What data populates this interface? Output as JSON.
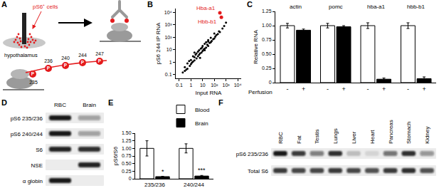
{
  "diagram": {
    "panel_label": "A",
    "cells_label": "pS6⁺ cells",
    "region_label": "hypothalamus",
    "sites_top": [
      "236",
      "240",
      "244",
      "247"
    ],
    "sites_bottom": [
      "235"
    ],
    "phospho_label": "P"
  },
  "chart_data": [
    {
      "panel_label": "B",
      "type": "scatter",
      "log": true,
      "xlabel": "Input RNA",
      "ylabel": "pS6 244 IP RNA",
      "xlim": [
        0.05,
        20000
      ],
      "ylim": [
        0.05,
        20000
      ],
      "xticks": [
        0.1,
        1,
        10,
        {
          "value": 100,
          "label": "10²"
        },
        {
          "value": 1000,
          "label": "10³"
        },
        {
          "value": 10000,
          "label": "10⁴"
        }
      ],
      "yticks": [
        0.1,
        1,
        10,
        {
          "value": 100,
          "label": "10²"
        },
        {
          "value": 1000,
          "label": "10³"
        },
        {
          "value": 10000,
          "label": "10⁴"
        }
      ],
      "series": [
        {
          "color": "#000000",
          "x": [
            0.2,
            0.3,
            0.3,
            0.5,
            0.5,
            0.7,
            0.8,
            1,
            1,
            1.2,
            1.5,
            1.5,
            2,
            2,
            2.5,
            3,
            3,
            4,
            4,
            5,
            5,
            6,
            7,
            8,
            9,
            10,
            10,
            12,
            15,
            15,
            20,
            20,
            25,
            30,
            30,
            40,
            50,
            50,
            60,
            80,
            100,
            100,
            120,
            150,
            200,
            250,
            300,
            500,
            700,
            1000,
            2,
            0.4,
            6,
            30,
            15
          ],
          "y": [
            0.15,
            0.4,
            0.2,
            0.8,
            0.3,
            1.2,
            0.5,
            1.5,
            0.7,
            0.9,
            3,
            1.1,
            2.5,
            1.4,
            4,
            2,
            5,
            3,
            7,
            4,
            9,
            5,
            12,
            6,
            15,
            8,
            20,
            10,
            12,
            30,
            15,
            40,
            25,
            20,
            60,
            35,
            40,
            90,
            50,
            70,
            80,
            200,
            110,
            150,
            180,
            300,
            260,
            500,
            800,
            1500,
            6,
            0.25,
            2.2,
            45,
            9
          ]
        },
        {
          "color": "#e41a1c",
          "x": [
            300,
            400
          ],
          "y": [
            9000,
            4000
          ],
          "labels": [
            "Hba-a1",
            "Hbb-b1"
          ]
        }
      ]
    },
    {
      "panel_label": "C",
      "type": "bar",
      "ylabel": "Relative RNA",
      "xlabel": "Perfusion",
      "categories": [
        "actin",
        "pomc",
        "hba-a1",
        "hbb-b1"
      ],
      "ylim": [
        0,
        1.25
      ],
      "yticks": [
        0,
        0.25,
        {
          "value": 0.5,
          "label": "0.50"
        },
        0.75,
        {
          "value": 1,
          "label": "1.00"
        },
        1.25
      ],
      "series": [
        {
          "name": "-",
          "color": "#ffffff",
          "values": [
            1,
            1,
            1,
            1
          ],
          "errors": [
            0.04,
            0.04,
            0.05,
            0.05
          ]
        },
        {
          "name": "+",
          "color": "#000000",
          "values": [
            0.92,
            0.98,
            0.06,
            0.07
          ],
          "errors": [
            0.02,
            0.02,
            0.02,
            0.03
          ]
        }
      ]
    },
    {
      "panel_label": "E",
      "type": "bar",
      "ylabel": "pS6/S6",
      "legend": "top right",
      "categories": [
        "235/236",
        "240/244"
      ],
      "ylim": [
        0,
        1.5
      ],
      "yticks": [
        0,
        0.25,
        {
          "value": 0.5,
          "label": "0.50"
        },
        0.75,
        {
          "value": 1,
          "label": "1.00"
        },
        1.25,
        {
          "value": 1.5,
          "label": "1.50"
        }
      ],
      "series": [
        {
          "name": "Blood",
          "color": "#ffffff",
          "values": [
            1,
            1
          ],
          "errors": [
            0.25,
            0.15
          ]
        },
        {
          "name": "Brain",
          "color": "#000000",
          "values": [
            0.07,
            0.09
          ],
          "errors": [
            0.01,
            0.02
          ]
        }
      ],
      "annotations": [
        {
          "category": "235/236",
          "series": "Brain",
          "text": "*"
        },
        {
          "category": "240/244",
          "series": "Brain",
          "text": "***"
        }
      ]
    }
  ],
  "blots": [
    {
      "panel_label": "D",
      "columns": [
        "RBC",
        "Brain"
      ],
      "rows": [
        {
          "label": "pS6 235/236",
          "intensity": [
            0.95,
            0.35
          ]
        },
        {
          "label": "pS6 240/244",
          "intensity": [
            0.95,
            0.35
          ]
        },
        {
          "label": "S6",
          "intensity": [
            0.9,
            0.85
          ]
        },
        {
          "label": "NSE",
          "intensity": [
            0,
            0.9
          ]
        },
        {
          "label": "α globin",
          "intensity": [
            0.95,
            0
          ]
        }
      ]
    },
    {
      "panel_label": "F",
      "columns": [
        "RBC",
        "Fat",
        "Testis",
        "Lungs",
        "Liver",
        "Heart",
        "Pancreas",
        "Stomach",
        "Kidney"
      ],
      "rows": [
        {
          "label": "pS6 235/236",
          "intensity": [
            0.95,
            0.8,
            0.5,
            0.85,
            0.2,
            0.1,
            0.55,
            0.85,
            0.4
          ]
        },
        {
          "label": "Total S6",
          "intensity": [
            0.8,
            0.75,
            0.75,
            0.8,
            0.75,
            0.7,
            0.8,
            0.85,
            0.7
          ]
        }
      ]
    }
  ]
}
